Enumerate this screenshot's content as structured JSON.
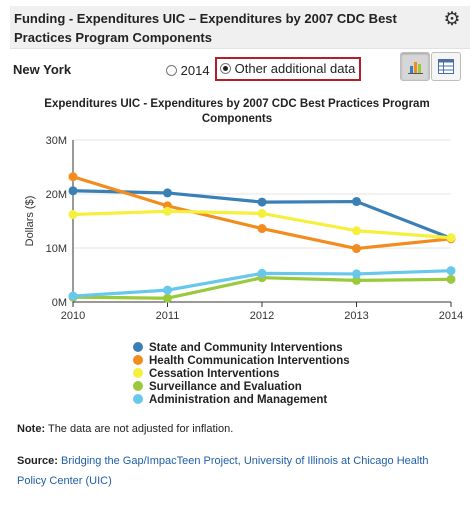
{
  "header": {
    "title": "Funding - Expenditures UIC – Expenditures by 2007 CDC Best Practices Program Components"
  },
  "state": "New York",
  "radio": {
    "options": [
      {
        "label": "2014",
        "checked": false
      },
      {
        "label": "Other additional data",
        "checked": true
      }
    ]
  },
  "icons": {
    "settings": "gear-icon",
    "chart_view": "bar-chart-icon",
    "table_view": "table-icon"
  },
  "chart_data": {
    "type": "line",
    "title": "Expenditures UIC - Expenditures by 2007 CDC Best Practices Program Components",
    "ylabel": "Dollars ($)",
    "xlabel": "",
    "x": [
      "2010",
      "2011",
      "2012",
      "2013",
      "2014"
    ],
    "y_ticks": [
      "0M",
      "10M",
      "20M",
      "30M"
    ],
    "ylim": [
      0,
      30000000
    ],
    "grid": true,
    "legend_position": "bottom",
    "series": [
      {
        "name": "State and Community Interventions",
        "color": "#3a80b6",
        "values": [
          20600000,
          20200000,
          18500000,
          18600000,
          11800000
        ]
      },
      {
        "name": "Health Communication Interventions",
        "color": "#f28c1e",
        "values": [
          23200000,
          17800000,
          13600000,
          9900000,
          11700000
        ]
      },
      {
        "name": "Cessation Interventions",
        "color": "#f5ef3d",
        "values": [
          16200000,
          16800000,
          16400000,
          13200000,
          11900000
        ]
      },
      {
        "name": "Surveillance and Evaluation",
        "color": "#9ac93c",
        "values": [
          900000,
          700000,
          4500000,
          4000000,
          4200000
        ]
      },
      {
        "name": "Administration and Management",
        "color": "#68c8ec",
        "values": [
          1100000,
          2200000,
          5300000,
          5200000,
          5800000
        ]
      }
    ]
  },
  "note": {
    "label": "Note:",
    "text": "The data are not adjusted for inflation."
  },
  "source": {
    "label": "Source:",
    "link_text": "Bridging the Gap/ImpacTeen Project, University of Illinois at Chicago Health Policy Center (UIC)"
  }
}
